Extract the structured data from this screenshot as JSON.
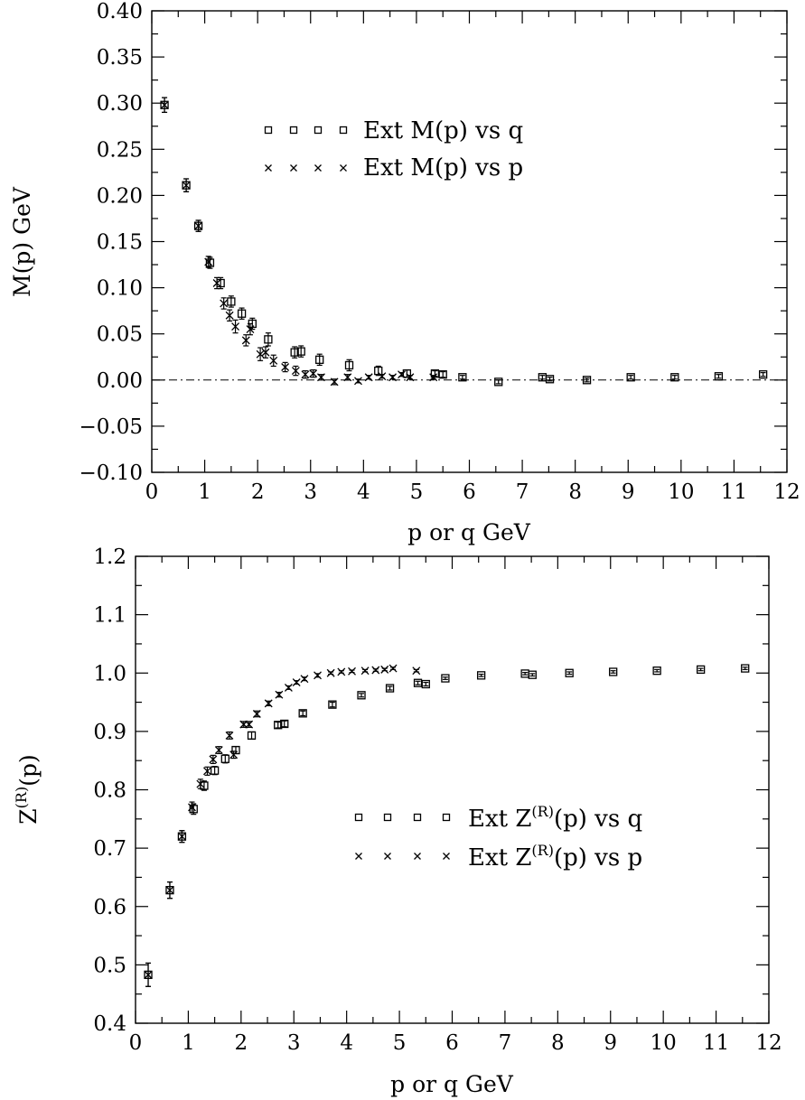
{
  "chart_data": [
    {
      "type": "scatter",
      "xlabel": "p or q GeV",
      "ylabel": "M(p) GeV",
      "xlim": [
        0,
        12
      ],
      "ylim": [
        -0.1,
        0.4
      ],
      "xticks": [
        0,
        1,
        2,
        3,
        4,
        5,
        6,
        7,
        8,
        9,
        10,
        11,
        12
      ],
      "xtick_labels": [
        "0",
        "1",
        "2",
        "3",
        "4",
        "5",
        "6",
        "7",
        "8",
        "9",
        "10",
        "11",
        "12"
      ],
      "yticks": [
        -0.1,
        -0.05,
        0.0,
        0.05,
        0.1,
        0.15,
        0.2,
        0.25,
        0.3,
        0.35,
        0.4
      ],
      "ytick_labels": [
        "−0.10",
        "−0.05",
        "0.00",
        "0.05",
        "0.10",
        "0.15",
        "0.20",
        "0.25",
        "0.30",
        "0.35",
        "0.40"
      ],
      "zero_line": true,
      "legend_position": "top-center",
      "series": [
        {
          "name": "Ext M(p) vs q",
          "marker": "square",
          "points": [
            [
              0.24,
              0.298,
              0.008
            ],
            [
              0.65,
              0.211,
              0.007
            ],
            [
              0.88,
              0.167,
              0.006
            ],
            [
              1.1,
              0.127,
              0.006
            ],
            [
              1.3,
              0.105,
              0.006
            ],
            [
              1.5,
              0.085,
              0.006
            ],
            [
              1.7,
              0.072,
              0.006
            ],
            [
              1.9,
              0.061,
              0.006
            ],
            [
              2.2,
              0.044,
              0.007
            ],
            [
              2.7,
              0.03,
              0.006
            ],
            [
              2.82,
              0.031,
              0.006
            ],
            [
              3.17,
              0.022,
              0.006
            ],
            [
              3.73,
              0.016,
              0.006
            ],
            [
              4.28,
              0.01,
              0.005
            ],
            [
              4.82,
              0.007,
              0.004
            ],
            [
              5.35,
              0.007,
              0.003
            ],
            [
              5.5,
              0.006,
              0.003
            ],
            [
              5.87,
              0.003,
              0.002
            ],
            [
              6.55,
              -0.002,
              0.002
            ],
            [
              7.38,
              0.003,
              0.002
            ],
            [
              7.52,
              0.001,
              0.002
            ],
            [
              8.22,
              0.0,
              0.002
            ],
            [
              9.05,
              0.003,
              0.002
            ],
            [
              9.88,
              0.003,
              0.002
            ],
            [
              10.71,
              0.004,
              0.002
            ],
            [
              11.55,
              0.006,
              0.002
            ]
          ]
        },
        {
          "name": "Ext M(p) vs p",
          "marker": "x",
          "points": [
            [
              0.24,
              0.298,
              0.008
            ],
            [
              0.65,
              0.211,
              0.007
            ],
            [
              0.88,
              0.167,
              0.006
            ],
            [
              1.07,
              0.128,
              0.006
            ],
            [
              1.23,
              0.105,
              0.006
            ],
            [
              1.36,
              0.083,
              0.006
            ],
            [
              1.47,
              0.07,
              0.006
            ],
            [
              1.58,
              0.058,
              0.007
            ],
            [
              1.78,
              0.043,
              0.006
            ],
            [
              1.86,
              0.055,
              0.006
            ],
            [
              2.05,
              0.028,
              0.007
            ],
            [
              2.15,
              0.03,
              0.006
            ],
            [
              2.3,
              0.021,
              0.006
            ],
            [
              2.52,
              0.014,
              0.005
            ],
            [
              2.72,
              0.01,
              0.005
            ],
            [
              2.9,
              0.006,
              0.004
            ],
            [
              3.05,
              0.007,
              0.004
            ],
            [
              3.2,
              0.003,
              0.003
            ],
            [
              3.45,
              -0.002,
              0.003
            ],
            [
              3.7,
              0.003,
              0.003
            ],
            [
              3.9,
              -0.001,
              0.002
            ],
            [
              4.1,
              0.003,
              0.002
            ],
            [
              4.35,
              0.004,
              0.002
            ],
            [
              4.55,
              0.003,
              0.002
            ],
            [
              4.72,
              0.006,
              0.002
            ],
            [
              4.88,
              0.003,
              0.002
            ],
            [
              5.32,
              0.003,
              0.002
            ]
          ]
        }
      ]
    },
    {
      "type": "scatter",
      "xlabel": "p or q GeV",
      "ylabel": "Z(R)(p)",
      "xlim": [
        0,
        12
      ],
      "ylim": [
        0.4,
        1.2
      ],
      "xticks": [
        0,
        1,
        2,
        3,
        4,
        5,
        6,
        7,
        8,
        9,
        10,
        11,
        12
      ],
      "xtick_labels": [
        "0",
        "1",
        "2",
        "3",
        "4",
        "5",
        "6",
        "7",
        "8",
        "9",
        "10",
        "11",
        "12"
      ],
      "yticks": [
        0.4,
        0.5,
        0.6,
        0.7,
        0.8,
        0.9,
        1.0,
        1.1,
        1.2
      ],
      "ytick_labels": [
        "0.4",
        "0.5",
        "0.6",
        "0.7",
        "0.8",
        "0.9",
        "1.0",
        "1.1",
        "1.2"
      ],
      "legend_position": "middle-right",
      "series": [
        {
          "name": "Ext Z(R)(p) vs q",
          "marker": "square",
          "points": [
            [
              0.24,
              0.483,
              0.02
            ],
            [
              0.65,
              0.628,
              0.014
            ],
            [
              0.88,
              0.72,
              0.01
            ],
            [
              1.1,
              0.767,
              0.009
            ],
            [
              1.3,
              0.807,
              0.008
            ],
            [
              1.5,
              0.833,
              0.007
            ],
            [
              1.7,
              0.853,
              0.007
            ],
            [
              1.9,
              0.868,
              0.006
            ],
            [
              2.2,
              0.893,
              0.006
            ],
            [
              2.7,
              0.911,
              0.005
            ],
            [
              2.82,
              0.913,
              0.005
            ],
            [
              3.17,
              0.931,
              0.004
            ],
            [
              3.73,
              0.946,
              0.004
            ],
            [
              4.28,
              0.962,
              0.003
            ],
            [
              4.82,
              0.974,
              0.003
            ],
            [
              5.35,
              0.983,
              0.003
            ],
            [
              5.5,
              0.981,
              0.003
            ],
            [
              5.87,
              0.991,
              0.002
            ],
            [
              6.55,
              0.996,
              0.002
            ],
            [
              7.38,
              0.999,
              0.002
            ],
            [
              7.52,
              0.997,
              0.002
            ],
            [
              8.22,
              1.0,
              0.002
            ],
            [
              9.05,
              1.002,
              0.002
            ],
            [
              9.88,
              1.004,
              0.002
            ],
            [
              10.71,
              1.006,
              0.002
            ],
            [
              11.55,
              1.008,
              0.002
            ]
          ]
        },
        {
          "name": "Ext Z(R)(p) vs p",
          "marker": "x",
          "points": [
            [
              0.24,
              0.483,
              0.02
            ],
            [
              0.65,
              0.628,
              0.014
            ],
            [
              0.88,
              0.72,
              0.01
            ],
            [
              1.07,
              0.77,
              0.009
            ],
            [
              1.23,
              0.81,
              0.008
            ],
            [
              1.36,
              0.832,
              0.007
            ],
            [
              1.47,
              0.852,
              0.007
            ],
            [
              1.58,
              0.868,
              0.006
            ],
            [
              1.78,
              0.893,
              0.006
            ],
            [
              1.86,
              0.86,
              0.006
            ],
            [
              2.05,
              0.912,
              0.005
            ],
            [
              2.15,
              0.912,
              0.005
            ],
            [
              2.3,
              0.93,
              0.005
            ],
            [
              2.52,
              0.948,
              0.004
            ],
            [
              2.72,
              0.963,
              0.004
            ],
            [
              2.9,
              0.975,
              0.003
            ],
            [
              3.05,
              0.984,
              0.003
            ],
            [
              3.2,
              0.99,
              0.003
            ],
            [
              3.45,
              0.996,
              0.003
            ],
            [
              3.7,
              1.0,
              0.002
            ],
            [
              3.9,
              1.002,
              0.002
            ],
            [
              4.1,
              1.003,
              0.002
            ],
            [
              4.35,
              1.004,
              0.002
            ],
            [
              4.55,
              1.005,
              0.002
            ],
            [
              4.72,
              1.006,
              0.002
            ],
            [
              4.88,
              1.008,
              0.002
            ],
            [
              5.32,
              1.004,
              0.002
            ]
          ]
        }
      ]
    }
  ],
  "legend_labels": {
    "top_q": {
      "pre": "Ext M(p) vs q",
      "sup": "",
      "post": ""
    },
    "top_p": {
      "pre": "Ext M(p) vs p",
      "sup": "",
      "post": ""
    },
    "bottom_q": {
      "pre": "Ext Z",
      "sup": "(R)",
      "post": "(p) vs q"
    },
    "bottom_p": {
      "pre": "Ext Z",
      "sup": "(R)",
      "post": "(p) vs p"
    }
  },
  "axis_text": {
    "top_xlabel": "p or q GeV",
    "top_ylabel": "M(p) GeV",
    "bottom_xlabel": "p or q GeV",
    "bottom_ylabel": {
      "pre": "Z",
      "sup": "(R)",
      "post": "(p)"
    }
  }
}
